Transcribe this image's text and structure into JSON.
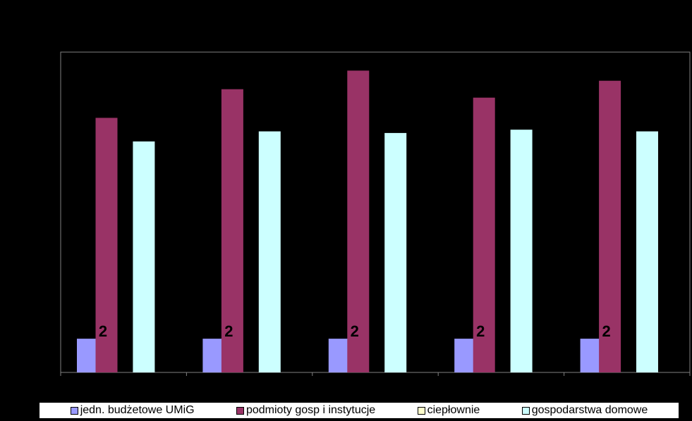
{
  "chart_data": {
    "type": "bar",
    "categories": [
      "",
      "",
      "",
      "",
      ""
    ],
    "series": [
      {
        "name": "jedn. budżetowe UMiG",
        "color": "#9999ff",
        "values": [
          2,
          2,
          2,
          2,
          2
        ],
        "labels": [
          "2",
          "2",
          "2",
          "2",
          "2"
        ]
      },
      {
        "name": "podmioty gosp i instytucje",
        "color": "#993366",
        "values": [
          15.1,
          16.8,
          17.9,
          16.3,
          17.3
        ]
      },
      {
        "name": "ciepłownie",
        "color": "#ffffcc",
        "values": [
          0,
          0,
          0,
          0,
          0
        ]
      },
      {
        "name": "gospodarstwa domowe",
        "color": "#ccffff",
        "values": [
          13.7,
          14.3,
          14.2,
          14.4,
          14.3
        ]
      }
    ],
    "title": "",
    "xlabel": "",
    "ylabel": "",
    "ylim": [
      0,
      19
    ],
    "grid": false,
    "legend_position": "bottom"
  }
}
